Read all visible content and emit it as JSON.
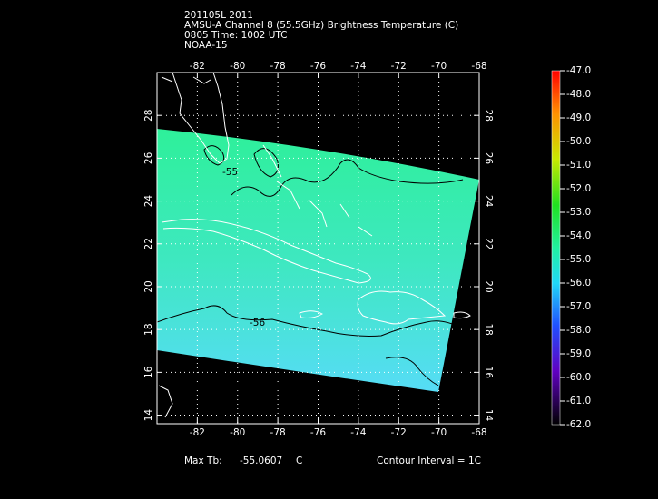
{
  "header": {
    "lines": [
      "201105L 2011",
      "AMSU-A Channel 8 (55.5GHz) Brightness Temperature (C)",
      "0805 Time: 1002 UTC",
      "NOAA-15"
    ]
  },
  "map": {
    "lon_range": [
      -84,
      -68
    ],
    "lat_range": [
      13.6,
      30
    ],
    "lon_ticks": [
      -82,
      -80,
      -78,
      -76,
      -74,
      -72,
      -70,
      -68
    ],
    "lat_ticks": [
      14,
      16,
      18,
      20,
      22,
      24,
      26,
      28
    ],
    "contour_labels": [
      "-55",
      "-56"
    ]
  },
  "colorbar": {
    "ticks": [
      {
        "value": -47,
        "label": "-47.0"
      },
      {
        "value": -48,
        "label": "-48.0"
      },
      {
        "value": -49,
        "label": "-49.0"
      },
      {
        "value": -50,
        "label": "-50.0"
      },
      {
        "value": -51,
        "label": "-51.0"
      },
      {
        "value": -52,
        "label": "-52.0"
      },
      {
        "value": -53,
        "label": "-53.0"
      },
      {
        "value": -54,
        "label": "-54.0"
      },
      {
        "value": -55,
        "label": "-55.0"
      },
      {
        "value": -56,
        "label": "-56.0"
      },
      {
        "value": -57,
        "label": "-57.0"
      },
      {
        "value": -58,
        "label": "-58.0"
      },
      {
        "value": -59,
        "label": "-59.0"
      },
      {
        "value": -60,
        "label": "-60.0"
      },
      {
        "value": -61,
        "label": "-61.0"
      },
      {
        "value": -62,
        "label": "-62.0"
      }
    ]
  },
  "footer": {
    "max_label": "Max Tb:",
    "max_value": "-55.0607",
    "unit": "C",
    "contour_interval": "Contour Interval = 1C"
  }
}
